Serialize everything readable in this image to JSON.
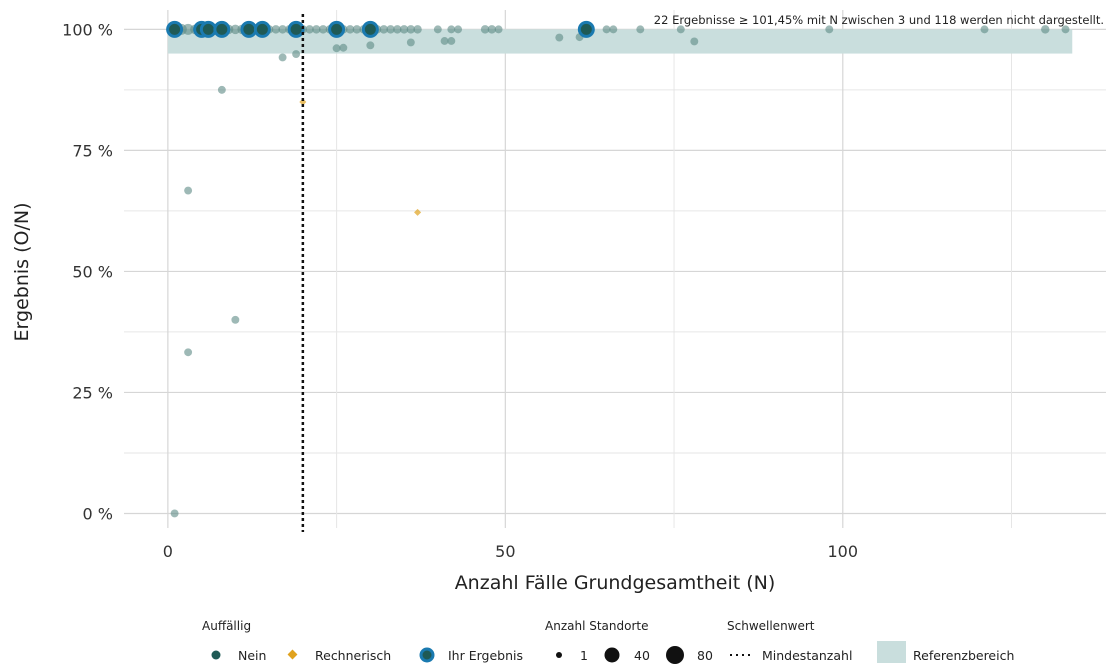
{
  "chart_data": {
    "type": "scatter",
    "title": "",
    "xlabel": "Anzahl Fälle Grundgesamtheit (N)",
    "ylabel": "Ergebnis (O/N)",
    "xlim": [
      -6.5,
      139
    ],
    "ylim": [
      -3,
      104
    ],
    "x_ticks": [
      0,
      50,
      100
    ],
    "x_tick_labels": [
      "0",
      "50",
      "100"
    ],
    "y_ticks": [
      0,
      25,
      50,
      75,
      100
    ],
    "y_tick_labels": [
      "0 %",
      "25 %",
      "50 %",
      "75 %",
      "100 %"
    ],
    "grid": true,
    "legend_position": "bottom",
    "reference_range": [
      95,
      100
    ],
    "min_count_threshold": 20,
    "note": "22 Ergebnisse ≥ 101,45% mit N zwischen 3 und 118 werden nicht dargestellt.",
    "colors": {
      "nein": "#1f5a55",
      "rechnerisch": "#e0a21e",
      "ihr_ergebnis": "#1a7ab0",
      "reference": "#c9dedd",
      "grid": "#d6d6d6"
    },
    "series": [
      {
        "name": "Nein",
        "points": [
          {
            "x": 1,
            "y": 100,
            "n": 40
          },
          {
            "x": 2,
            "y": 100,
            "n": 20
          },
          {
            "x": 3,
            "y": 100,
            "n": 20
          },
          {
            "x": 4,
            "y": 100,
            "n": 10
          },
          {
            "x": 5,
            "y": 100,
            "n": 10
          },
          {
            "x": 6,
            "y": 100,
            "n": 30
          },
          {
            "x": 7,
            "y": 100,
            "n": 20
          },
          {
            "x": 8,
            "y": 100,
            "n": 20
          },
          {
            "x": 9,
            "y": 100,
            "n": 10
          },
          {
            "x": 10,
            "y": 100,
            "n": 10
          },
          {
            "x": 11,
            "y": 100,
            "n": 10
          },
          {
            "x": 12,
            "y": 100,
            "n": 20
          },
          {
            "x": 13,
            "y": 100,
            "n": 10
          },
          {
            "x": 14,
            "y": 100,
            "n": 10
          },
          {
            "x": 15,
            "y": 100,
            "n": 5
          },
          {
            "x": 16,
            "y": 100,
            "n": 5
          },
          {
            "x": 17,
            "y": 100,
            "n": 5
          },
          {
            "x": 18,
            "y": 100,
            "n": 5
          },
          {
            "x": 19,
            "y": 100,
            "n": 5
          },
          {
            "x": 20,
            "y": 100,
            "n": 5
          },
          {
            "x": 21,
            "y": 100,
            "n": 5
          },
          {
            "x": 22,
            "y": 100,
            "n": 5
          },
          {
            "x": 23,
            "y": 100,
            "n": 5
          },
          {
            "x": 24,
            "y": 100,
            "n": 5
          },
          {
            "x": 25,
            "y": 100,
            "n": 5
          },
          {
            "x": 26,
            "y": 100,
            "n": 5
          },
          {
            "x": 27,
            "y": 100,
            "n": 5
          },
          {
            "x": 28,
            "y": 100,
            "n": 5
          },
          {
            "x": 29,
            "y": 100,
            "n": 5
          },
          {
            "x": 30,
            "y": 100,
            "n": 5
          },
          {
            "x": 31,
            "y": 100,
            "n": 5
          },
          {
            "x": 32,
            "y": 100,
            "n": 5
          },
          {
            "x": 33,
            "y": 100,
            "n": 5
          },
          {
            "x": 34,
            "y": 100,
            "n": 5
          },
          {
            "x": 35,
            "y": 100,
            "n": 5
          },
          {
            "x": 36,
            "y": 100,
            "n": 5
          },
          {
            "x": 37,
            "y": 100,
            "n": 5
          },
          {
            "x": 40,
            "y": 100,
            "n": 3
          },
          {
            "x": 42,
            "y": 100,
            "n": 3
          },
          {
            "x": 43,
            "y": 100,
            "n": 3
          },
          {
            "x": 47,
            "y": 100,
            "n": 5
          },
          {
            "x": 48,
            "y": 100,
            "n": 5
          },
          {
            "x": 49,
            "y": 100,
            "n": 3
          },
          {
            "x": 65,
            "y": 100,
            "n": 3
          },
          {
            "x": 66,
            "y": 100,
            "n": 3
          },
          {
            "x": 70,
            "y": 100,
            "n": 3
          },
          {
            "x": 76,
            "y": 100,
            "n": 3
          },
          {
            "x": 98,
            "y": 100,
            "n": 3
          },
          {
            "x": 121,
            "y": 100,
            "n": 3
          },
          {
            "x": 130,
            "y": 100,
            "n": 5
          },
          {
            "x": 133,
            "y": 100,
            "n": 3
          },
          {
            "x": 58,
            "y": 98.3,
            "n": 3
          },
          {
            "x": 61,
            "y": 98.4,
            "n": 3
          },
          {
            "x": 36,
            "y": 97.3,
            "n": 3
          },
          {
            "x": 41,
            "y": 97.6,
            "n": 3
          },
          {
            "x": 42,
            "y": 97.6,
            "n": 3
          },
          {
            "x": 78,
            "y": 97.5,
            "n": 3
          },
          {
            "x": 30,
            "y": 96.7,
            "n": 3
          },
          {
            "x": 25,
            "y": 96.1,
            "n": 3
          },
          {
            "x": 26,
            "y": 96.2,
            "n": 3
          },
          {
            "x": 19,
            "y": 94.9,
            "n": 3
          },
          {
            "x": 17,
            "y": 94.2,
            "n": 3
          },
          {
            "x": 8,
            "y": 87.5,
            "n": 3
          },
          {
            "x": 3,
            "y": 66.7,
            "n": 3
          },
          {
            "x": 10,
            "y": 40,
            "n": 3
          },
          {
            "x": 3,
            "y": 33.3,
            "n": 3
          },
          {
            "x": 1,
            "y": 0,
            "n": 3
          }
        ]
      },
      {
        "name": "Rechnerisch",
        "points": [
          {
            "x": 20,
            "y": 85,
            "n": 1
          },
          {
            "x": 37,
            "y": 62.2,
            "n": 1
          }
        ]
      },
      {
        "name": "Ihr Ergebnis",
        "points": [
          {
            "x": 1,
            "y": 100
          },
          {
            "x": 5,
            "y": 100
          },
          {
            "x": 6,
            "y": 100
          },
          {
            "x": 8,
            "y": 100
          },
          {
            "x": 12,
            "y": 100
          },
          {
            "x": 14,
            "y": 100
          },
          {
            "x": 19,
            "y": 100
          },
          {
            "x": 25,
            "y": 100
          },
          {
            "x": 30,
            "y": 100
          },
          {
            "x": 62,
            "y": 100
          }
        ]
      }
    ]
  },
  "legend": {
    "auffaellig_title": "Auffällig",
    "nein": "Nein",
    "rechnerisch": "Rechnerisch",
    "ihr_ergebnis": "Ihr Ergebnis",
    "anzahl_title": "Anzahl Standorte",
    "size_1": "1",
    "size_40": "40",
    "size_80": "80",
    "schwellen_title": "Schwellenwert",
    "mindestanzahl": "Mindestanzahl",
    "referenzbereich": "Referenzbereich"
  }
}
